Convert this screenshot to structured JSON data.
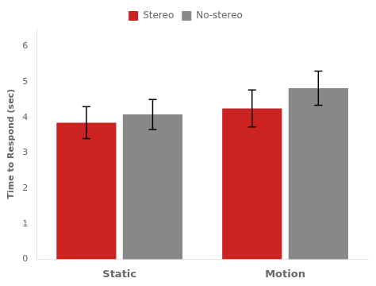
{
  "chart_data": {
    "type": "bar",
    "categories": [
      "Static",
      "Motion"
    ],
    "series": [
      {
        "name": "Stereo",
        "color": "#cc2222",
        "values": [
          3.85,
          4.25
        ],
        "errors": [
          0.45,
          0.52
        ]
      },
      {
        "name": "No-stereo",
        "color": "#888888",
        "values": [
          4.08,
          4.82
        ],
        "errors": [
          0.42,
          0.48
        ]
      }
    ],
    "ylabel": "Time to Respond (sec)",
    "ylim": [
      0,
      6.5
    ],
    "yticks": [
      0,
      1,
      2,
      3,
      4,
      5,
      6
    ],
    "grid": false,
    "legend": "top"
  }
}
